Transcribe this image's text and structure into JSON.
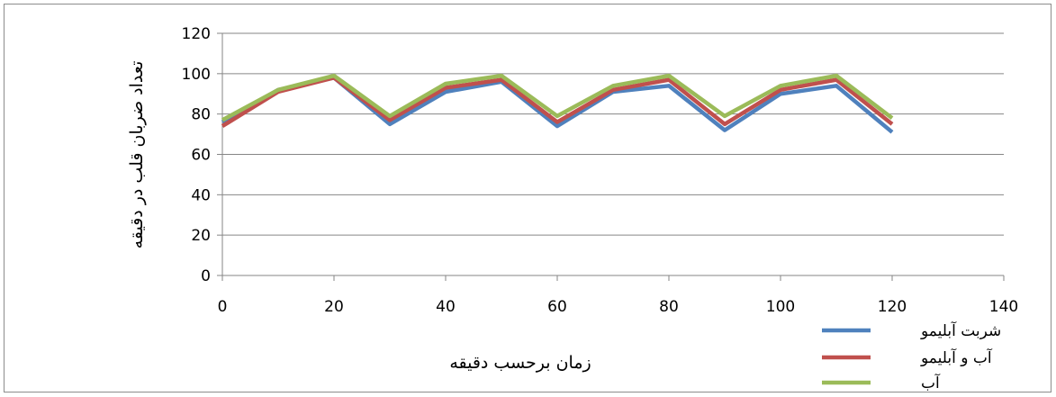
{
  "chart_data": {
    "type": "line",
    "title": "",
    "xlabel": "زمان برحسب دقیقه",
    "ylabel": "تعداد ضربان قلب در دقیقه",
    "xlim": [
      0,
      140
    ],
    "ylim": [
      0,
      120
    ],
    "xticks": [
      0,
      20,
      40,
      60,
      80,
      100,
      120,
      140
    ],
    "yticks": [
      0,
      20,
      40,
      60,
      80,
      100,
      120
    ],
    "grid": "horizontal",
    "legend_position": "bottom-right",
    "x": [
      0,
      10,
      20,
      30,
      40,
      50,
      60,
      70,
      80,
      90,
      100,
      110,
      120
    ],
    "series": [
      {
        "name": "شربت آبلیمو",
        "color": "#4f81bd",
        "values": [
          76,
          92,
          98,
          75,
          91,
          96,
          74,
          91,
          94,
          72,
          90,
          94,
          71
        ]
      },
      {
        "name": "آب و آبلیمو",
        "color": "#c0504d",
        "values": [
          74,
          91,
          98,
          77,
          93,
          97,
          76,
          92,
          97,
          75,
          92,
          97,
          75
        ]
      },
      {
        "name": "آب",
        "color": "#9bbb59",
        "values": [
          77,
          92,
          99,
          79,
          95,
          99,
          79,
          94,
          99,
          79,
          94,
          99,
          78
        ]
      }
    ]
  }
}
